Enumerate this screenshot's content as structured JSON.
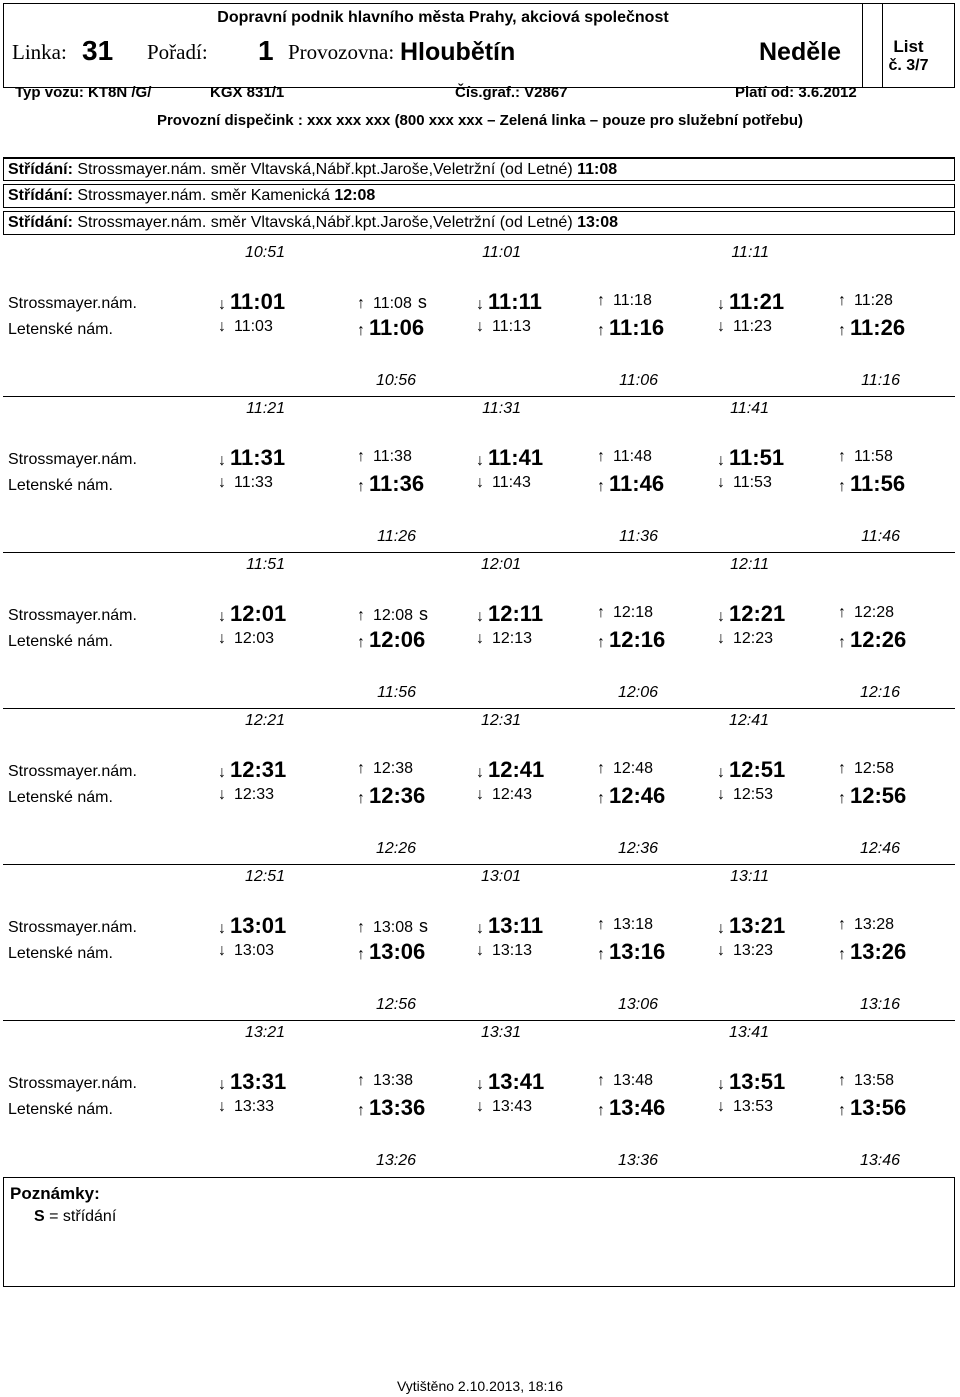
{
  "header": {
    "company": "Dopravní podnik hlavního města Prahy, akciová společnost",
    "line_label": "Linka:",
    "line_number": "31",
    "order_label": "Pořadí:",
    "order_number": "1",
    "depot_label": "Provozovna:",
    "depot_name": "Hloubětín",
    "day": "Neděle",
    "sheet_label": "List",
    "sheet_number": "č. 3/7",
    "vehicle_type": "Typ vozu: KT8N /G/",
    "vehicle_code": "KGX 831/1",
    "chart_number": "Čís.graf.: V2867",
    "valid_from": "Platí od: 3.6.2012",
    "dispatch": "Provozní dispečink : xxx xxx xxx (800 xxx xxx – Zelená linka – pouze pro služební potřebu)"
  },
  "changes": [
    {
      "label": "Střídání:",
      "text": "Strossmayer.nám. směr Vltavská,Nábř.kpt.Jaroše,Veletržní (od Letné)",
      "time": "11:08"
    },
    {
      "label": "Střídání:",
      "text": "Strossmayer.nám. směr Kamenická",
      "time": "12:08"
    },
    {
      "label": "Střídání:",
      "text": "Strossmayer.nám. směr Vltavská,Nábř.kpt.Jaroše,Veletržní (od Letné)",
      "time": "13:08"
    }
  ],
  "stops": {
    "a": "Strossmayer.nám.",
    "b": "Letenské nám."
  },
  "blocks": [
    {
      "top_times": [
        "10:51",
        "11:01",
        "11:11"
      ],
      "row_a": [
        {
          "dir": "down",
          "t": "11:01"
        },
        {
          "dir": "up",
          "t": "11:08",
          "s": "s"
        },
        {
          "dir": "down",
          "t": "11:11"
        },
        {
          "dir": "up",
          "t": "11:18"
        },
        {
          "dir": "down",
          "t": "11:21"
        },
        {
          "dir": "up",
          "t": "11:28"
        }
      ],
      "row_b": [
        {
          "dir": "down",
          "t": "11:03"
        },
        {
          "dir": "up",
          "t": "11:06"
        },
        {
          "dir": "down",
          "t": "11:13"
        },
        {
          "dir": "up",
          "t": "11:16"
        },
        {
          "dir": "down",
          "t": "11:23"
        },
        {
          "dir": "up",
          "t": "11:26"
        }
      ],
      "bottom_times": [
        "10:56",
        "11:06",
        "11:16"
      ]
    },
    {
      "top_times": [
        "11:21",
        "11:31",
        "11:41"
      ],
      "row_a": [
        {
          "dir": "down",
          "t": "11:31"
        },
        {
          "dir": "up",
          "t": "11:38"
        },
        {
          "dir": "down",
          "t": "11:41"
        },
        {
          "dir": "up",
          "t": "11:48"
        },
        {
          "dir": "down",
          "t": "11:51"
        },
        {
          "dir": "up",
          "t": "11:58"
        }
      ],
      "row_b": [
        {
          "dir": "down",
          "t": "11:33"
        },
        {
          "dir": "up",
          "t": "11:36"
        },
        {
          "dir": "down",
          "t": "11:43"
        },
        {
          "dir": "up",
          "t": "11:46"
        },
        {
          "dir": "down",
          "t": "11:53"
        },
        {
          "dir": "up",
          "t": "11:56"
        }
      ],
      "bottom_times": [
        "11:26",
        "11:36",
        "11:46"
      ]
    },
    {
      "top_times": [
        "11:51",
        "12:01",
        "12:11"
      ],
      "row_a": [
        {
          "dir": "down",
          "t": "12:01"
        },
        {
          "dir": "up",
          "t": "12:08",
          "s": "s"
        },
        {
          "dir": "down",
          "t": "12:11"
        },
        {
          "dir": "up",
          "t": "12:18"
        },
        {
          "dir": "down",
          "t": "12:21"
        },
        {
          "dir": "up",
          "t": "12:28"
        }
      ],
      "row_b": [
        {
          "dir": "down",
          "t": "12:03"
        },
        {
          "dir": "up",
          "t": "12:06"
        },
        {
          "dir": "down",
          "t": "12:13"
        },
        {
          "dir": "up",
          "t": "12:16"
        },
        {
          "dir": "down",
          "t": "12:23"
        },
        {
          "dir": "up",
          "t": "12:26"
        }
      ],
      "bottom_times": [
        "11:56",
        "12:06",
        "12:16"
      ]
    },
    {
      "top_times": [
        "12:21",
        "12:31",
        "12:41"
      ],
      "row_a": [
        {
          "dir": "down",
          "t": "12:31"
        },
        {
          "dir": "up",
          "t": "12:38"
        },
        {
          "dir": "down",
          "t": "12:41"
        },
        {
          "dir": "up",
          "t": "12:48"
        },
        {
          "dir": "down",
          "t": "12:51"
        },
        {
          "dir": "up",
          "t": "12:58"
        }
      ],
      "row_b": [
        {
          "dir": "down",
          "t": "12:33"
        },
        {
          "dir": "up",
          "t": "12:36"
        },
        {
          "dir": "down",
          "t": "12:43"
        },
        {
          "dir": "up",
          "t": "12:46"
        },
        {
          "dir": "down",
          "t": "12:53"
        },
        {
          "dir": "up",
          "t": "12:56"
        }
      ],
      "bottom_times": [
        "12:26",
        "12:36",
        "12:46"
      ]
    },
    {
      "top_times": [
        "12:51",
        "13:01",
        "13:11"
      ],
      "row_a": [
        {
          "dir": "down",
          "t": "13:01"
        },
        {
          "dir": "up",
          "t": "13:08",
          "s": "s"
        },
        {
          "dir": "down",
          "t": "13:11"
        },
        {
          "dir": "up",
          "t": "13:18"
        },
        {
          "dir": "down",
          "t": "13:21"
        },
        {
          "dir": "up",
          "t": "13:28"
        }
      ],
      "row_b": [
        {
          "dir": "down",
          "t": "13:03"
        },
        {
          "dir": "up",
          "t": "13:06"
        },
        {
          "dir": "down",
          "t": "13:13"
        },
        {
          "dir": "up",
          "t": "13:16"
        },
        {
          "dir": "down",
          "t": "13:23"
        },
        {
          "dir": "up",
          "t": "13:26"
        }
      ],
      "bottom_times": [
        "12:56",
        "13:06",
        "13:16"
      ]
    },
    {
      "top_times": [
        "13:21",
        "13:31",
        "13:41"
      ],
      "row_a": [
        {
          "dir": "down",
          "t": "13:31"
        },
        {
          "dir": "up",
          "t": "13:38"
        },
        {
          "dir": "down",
          "t": "13:41"
        },
        {
          "dir": "up",
          "t": "13:48"
        },
        {
          "dir": "down",
          "t": "13:51"
        },
        {
          "dir": "up",
          "t": "13:58"
        }
      ],
      "row_b": [
        {
          "dir": "down",
          "t": "13:33"
        },
        {
          "dir": "up",
          "t": "13:36"
        },
        {
          "dir": "down",
          "t": "13:43"
        },
        {
          "dir": "up",
          "t": "13:46"
        },
        {
          "dir": "down",
          "t": "13:53"
        },
        {
          "dir": "up",
          "t": "13:56"
        }
      ],
      "bottom_times": [
        "13:26",
        "13:36",
        "13:46"
      ]
    }
  ],
  "notes": {
    "title": "Poznámky:",
    "legend_key": "S",
    "legend_text": "= střídání"
  },
  "printed": "Vytištěno 2.10.2013, 18:16"
}
